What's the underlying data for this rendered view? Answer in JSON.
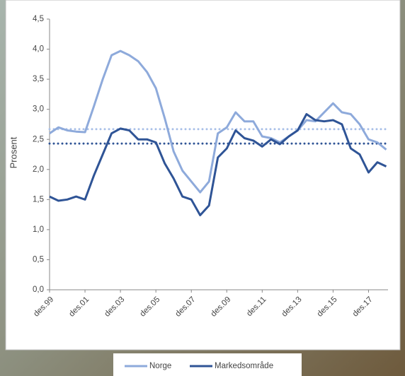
{
  "chart_data": {
    "type": "line",
    "y_label": "Prosent",
    "categories": [
      "des.99",
      null,
      null,
      null,
      "des.01",
      null,
      null,
      null,
      "des.03",
      null,
      null,
      null,
      "des.05",
      null,
      null,
      null,
      "des.07",
      null,
      null,
      null,
      "des.09",
      null,
      null,
      null,
      "des.11",
      null,
      null,
      null,
      "des.13",
      null,
      null,
      null,
      "des.15",
      null,
      null,
      null,
      "des.17",
      null,
      null
    ],
    "series": [
      {
        "name": "Norge",
        "color": "#8eaadb",
        "values": [
          2.6,
          2.7,
          2.65,
          2.63,
          2.62,
          3.05,
          3.5,
          3.9,
          3.97,
          3.9,
          3.8,
          3.62,
          3.35,
          2.85,
          2.3,
          1.98,
          1.8,
          1.62,
          1.8,
          2.6,
          2.7,
          2.95,
          2.8,
          2.8,
          2.55,
          2.52,
          2.45,
          2.55,
          2.65,
          2.82,
          2.8,
          2.95,
          3.1,
          2.95,
          2.92,
          2.75,
          2.5,
          2.45,
          2.33
        ]
      },
      {
        "name": "Markedsområde",
        "color": "#2f5496",
        "values": [
          1.55,
          1.48,
          1.5,
          1.55,
          1.5,
          1.9,
          2.25,
          2.6,
          2.68,
          2.65,
          2.5,
          2.5,
          2.45,
          2.1,
          1.85,
          1.55,
          1.5,
          1.24,
          1.4,
          2.2,
          2.35,
          2.65,
          2.52,
          2.48,
          2.38,
          2.5,
          2.42,
          2.55,
          2.65,
          2.92,
          2.82,
          2.8,
          2.82,
          2.75,
          2.35,
          2.25,
          1.95,
          2.12,
          2.05
        ]
      }
    ],
    "reference_lines": [
      {
        "value": 2.67,
        "color": "#a9c0e8"
      },
      {
        "value": 2.43,
        "color": "#2f5496"
      }
    ],
    "ylim": [
      0,
      4.5
    ],
    "yticks": [
      {
        "value": 0,
        "label": "0,0"
      },
      {
        "value": 0.5,
        "label": "0,5"
      },
      {
        "value": 1,
        "label": "1,0"
      },
      {
        "value": 1.5,
        "label": "1,5"
      },
      {
        "value": 2,
        "label": "2,0"
      },
      {
        "value": 2.5,
        "label": "2,5"
      },
      {
        "value": 3,
        "label": "3,0"
      },
      {
        "value": 3.5,
        "label": "3,5"
      },
      {
        "value": 4,
        "label": "4,0"
      },
      {
        "value": 4.5,
        "label": "4,5"
      }
    ],
    "grid": false,
    "legend": "bottom"
  }
}
